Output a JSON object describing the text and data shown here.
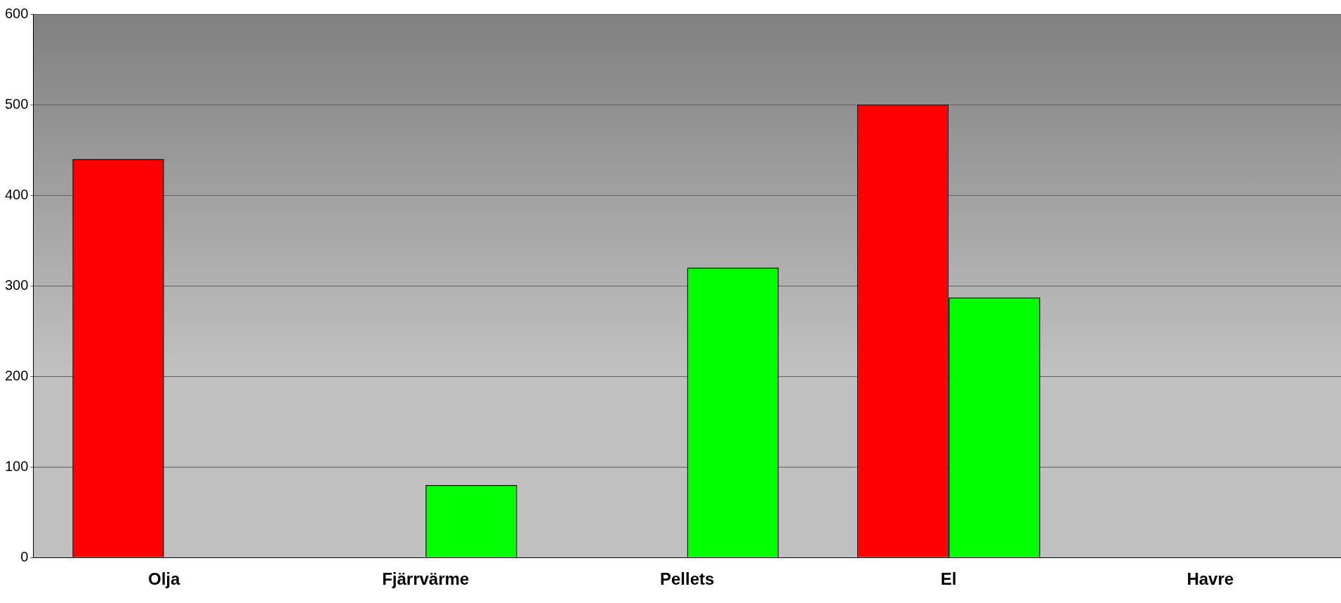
{
  "chart_data": {
    "type": "bar",
    "categories": [
      "Olja",
      "Fjärrvärme",
      "Pellets",
      "El",
      "Havre"
    ],
    "series": [
      {
        "color": "#ff0000",
        "values": [
          440,
          null,
          null,
          500,
          null
        ]
      },
      {
        "color": "#00ff00",
        "values": [
          null,
          80,
          320,
          287,
          null
        ]
      }
    ],
    "ylim": [
      0,
      600
    ],
    "yticks": [
      0,
      100,
      200,
      300,
      400,
      500,
      600
    ],
    "grid": "y",
    "legend": false
  }
}
